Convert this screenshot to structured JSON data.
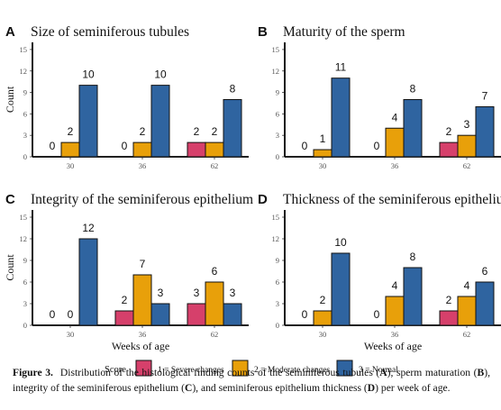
{
  "colors": {
    "severe": "#d6406b",
    "moderate": "#e8a00a",
    "normal": "#2f64a0",
    "axis": "#000000",
    "grid_label": "#555555"
  },
  "chart_data": [
    {
      "type": "bar",
      "panel": "A",
      "title": "Size of seminiferous tubules",
      "ylabel": "Count",
      "xlabel": "",
      "ylim": [
        0,
        16
      ],
      "yticks": [
        0,
        3,
        6,
        9,
        12,
        15
      ],
      "categories": [
        "30",
        "36",
        "62"
      ],
      "series": [
        {
          "name": "1 = Severe changes",
          "values": [
            0,
            0,
            2
          ]
        },
        {
          "name": "2 = Moderate changes",
          "values": [
            2,
            2,
            2
          ]
        },
        {
          "name": "3 = Normal",
          "values": [
            10,
            10,
            8
          ]
        }
      ]
    },
    {
      "type": "bar",
      "panel": "B",
      "title": "Maturity of the sperm",
      "ylabel": "",
      "xlabel": "",
      "ylim": [
        0,
        16
      ],
      "yticks": [
        0,
        3,
        6,
        9,
        12,
        15
      ],
      "categories": [
        "30",
        "36",
        "62"
      ],
      "series": [
        {
          "name": "1 = Severe changes",
          "values": [
            0,
            0,
            2
          ]
        },
        {
          "name": "2 = Moderate changes",
          "values": [
            1,
            4,
            3
          ]
        },
        {
          "name": "3 = Normal",
          "values": [
            11,
            8,
            7
          ]
        }
      ]
    },
    {
      "type": "bar",
      "panel": "C",
      "title": "Integrity of the seminiferous epithelium",
      "ylabel": "Count",
      "xlabel": "Weeks of age",
      "ylim": [
        0,
        16
      ],
      "yticks": [
        0,
        3,
        6,
        9,
        12,
        15
      ],
      "categories": [
        "30",
        "36",
        "62"
      ],
      "series": [
        {
          "name": "1 = Severe changes",
          "values": [
            0,
            2,
            3
          ]
        },
        {
          "name": "2 = Moderate changes",
          "values": [
            0,
            7,
            6
          ]
        },
        {
          "name": "3 = Normal",
          "values": [
            12,
            3,
            3
          ]
        }
      ]
    },
    {
      "type": "bar",
      "panel": "D",
      "title": "Thickness of the seminiferous epithelium",
      "ylabel": "",
      "xlabel": "Weeks of age",
      "ylim": [
        0,
        16
      ],
      "yticks": [
        0,
        3,
        6,
        9,
        12,
        15
      ],
      "categories": [
        "30",
        "36",
        "62"
      ],
      "series": [
        {
          "name": "1 = Severe changes",
          "values": [
            0,
            0,
            2
          ]
        },
        {
          "name": "2 = Moderate changes",
          "values": [
            2,
            4,
            4
          ]
        },
        {
          "name": "3 = Normal",
          "values": [
            10,
            8,
            6
          ]
        }
      ]
    }
  ],
  "legend": {
    "title": "Score",
    "items": [
      "1 = Severe changes",
      "2 = Moderate changes",
      "3 = Normal"
    ]
  },
  "caption": {
    "label": "Figure 3.",
    "text_1": "Distribution of the histological finding counts of the seminiferous tubules (",
    "ref_a": "A",
    "text_2": "), sperm maturation (",
    "ref_b": "B",
    "text_3": "), integrity of the seminiferous epithelium (",
    "ref_c": "C",
    "text_4": "), and seminiferous epithelium thickness (",
    "ref_d": "D",
    "text_5": ") per week of age."
  }
}
